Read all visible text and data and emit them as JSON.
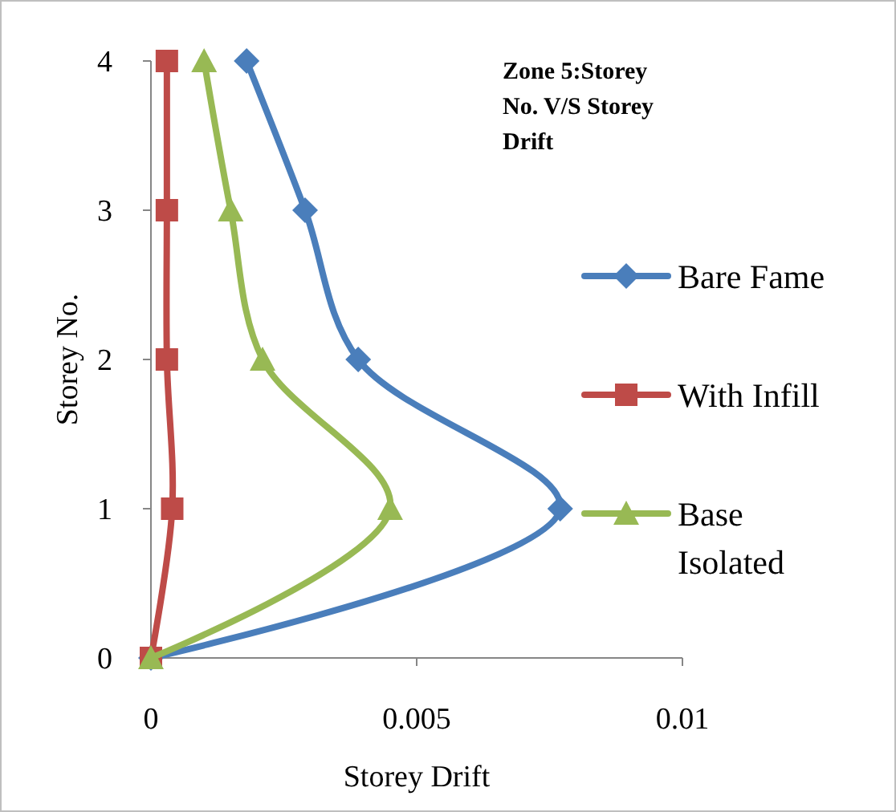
{
  "chart_data": {
    "type": "line",
    "title": "Zone 5:Storey No. V/S Storey Drift",
    "xlabel": "Storey Drift",
    "ylabel": "Storey  No.",
    "series": [
      {
        "name": "Bare Fame",
        "color": "#4a7ebb",
        "marker": "diamond",
        "x": [
          0,
          0.0077,
          0.0039,
          0.0029,
          0.0018
        ],
        "values": [
          0,
          1,
          2,
          3,
          4
        ]
      },
      {
        "name": "With Infill",
        "color": "#be4b48",
        "marker": "square",
        "x": [
          0,
          0.0004,
          0.0003,
          0.0003,
          0.0003
        ],
        "values": [
          0,
          1,
          2,
          3,
          4
        ]
      },
      {
        "name": "Base Isolated",
        "color": "#98b954",
        "marker": "triangle",
        "x": [
          0,
          0.0045,
          0.0021,
          0.0015,
          0.001
        ],
        "values": [
          0,
          1,
          2,
          3,
          4
        ]
      }
    ],
    "xlim": [
      0,
      0.01
    ],
    "xticks": [
      0,
      0.005,
      0.01
    ],
    "ylim": [
      0,
      4
    ],
    "yticks": [
      0,
      1,
      2,
      3,
      4
    ],
    "grid": false,
    "legend": "right"
  }
}
